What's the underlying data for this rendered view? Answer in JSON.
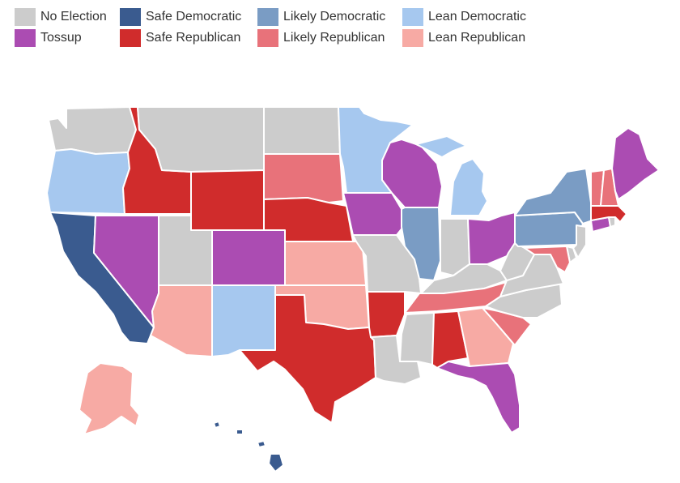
{
  "colors": {
    "no_election": "#cccccc",
    "tossup": "#ab4cb2",
    "safe_dem": "#3a5b8f",
    "safe_rep": "#d02c2c",
    "likely_dem": "#7a9cc4",
    "likely_rep": "#e8727a",
    "lean_dem": "#a6c8ef",
    "lean_rep": "#f7aaa4"
  },
  "legend": [
    {
      "key": "no_election",
      "label": "No Election"
    },
    {
      "key": "safe_dem",
      "label": "Safe Democratic"
    },
    {
      "key": "likely_dem",
      "label": "Likely Democratic"
    },
    {
      "key": "lean_dem",
      "label": "Lean Democratic"
    },
    {
      "key": "tossup",
      "label": "Tossup"
    },
    {
      "key": "safe_rep",
      "label": "Safe Republican"
    },
    {
      "key": "likely_rep",
      "label": "Likely Republican"
    },
    {
      "key": "lean_rep",
      "label": "Lean Republican"
    }
  ],
  "states": {
    "WA": "no_election",
    "OR": "lean_dem",
    "CA": "safe_dem",
    "NV": "tossup",
    "ID": "safe_rep",
    "MT": "no_election",
    "WY": "safe_rep",
    "UT": "no_election",
    "AZ": "lean_rep",
    "CO": "tossup",
    "NM": "lean_dem",
    "ND": "no_election",
    "SD": "likely_rep",
    "NE": "safe_rep",
    "KS": "lean_rep",
    "OK": "lean_rep",
    "TX": "safe_rep",
    "MN": "lean_dem",
    "IA": "tossup",
    "MO": "no_election",
    "AR": "safe_rep",
    "LA": "no_election",
    "WI": "tossup",
    "IL": "likely_dem",
    "MI": "lean_dem",
    "IN": "no_election",
    "OH": "tossup",
    "KY": "no_election",
    "TN": "likely_rep",
    "MS": "no_election",
    "AL": "safe_rep",
    "GA": "lean_rep",
    "FL": "tossup",
    "SC": "likely_rep",
    "NC": "no_election",
    "VA": "no_election",
    "WV": "no_election",
    "PA": "likely_dem",
    "NY": "likely_dem",
    "VT": "likely_rep",
    "NH": "likely_rep",
    "ME": "tossup",
    "MA": "safe_rep",
    "RI": "no_election",
    "CT": "tossup",
    "NJ": "no_election",
    "DE": "no_election",
    "MD": "likely_rep",
    "AK": "lean_rep",
    "HI": "safe_dem"
  }
}
